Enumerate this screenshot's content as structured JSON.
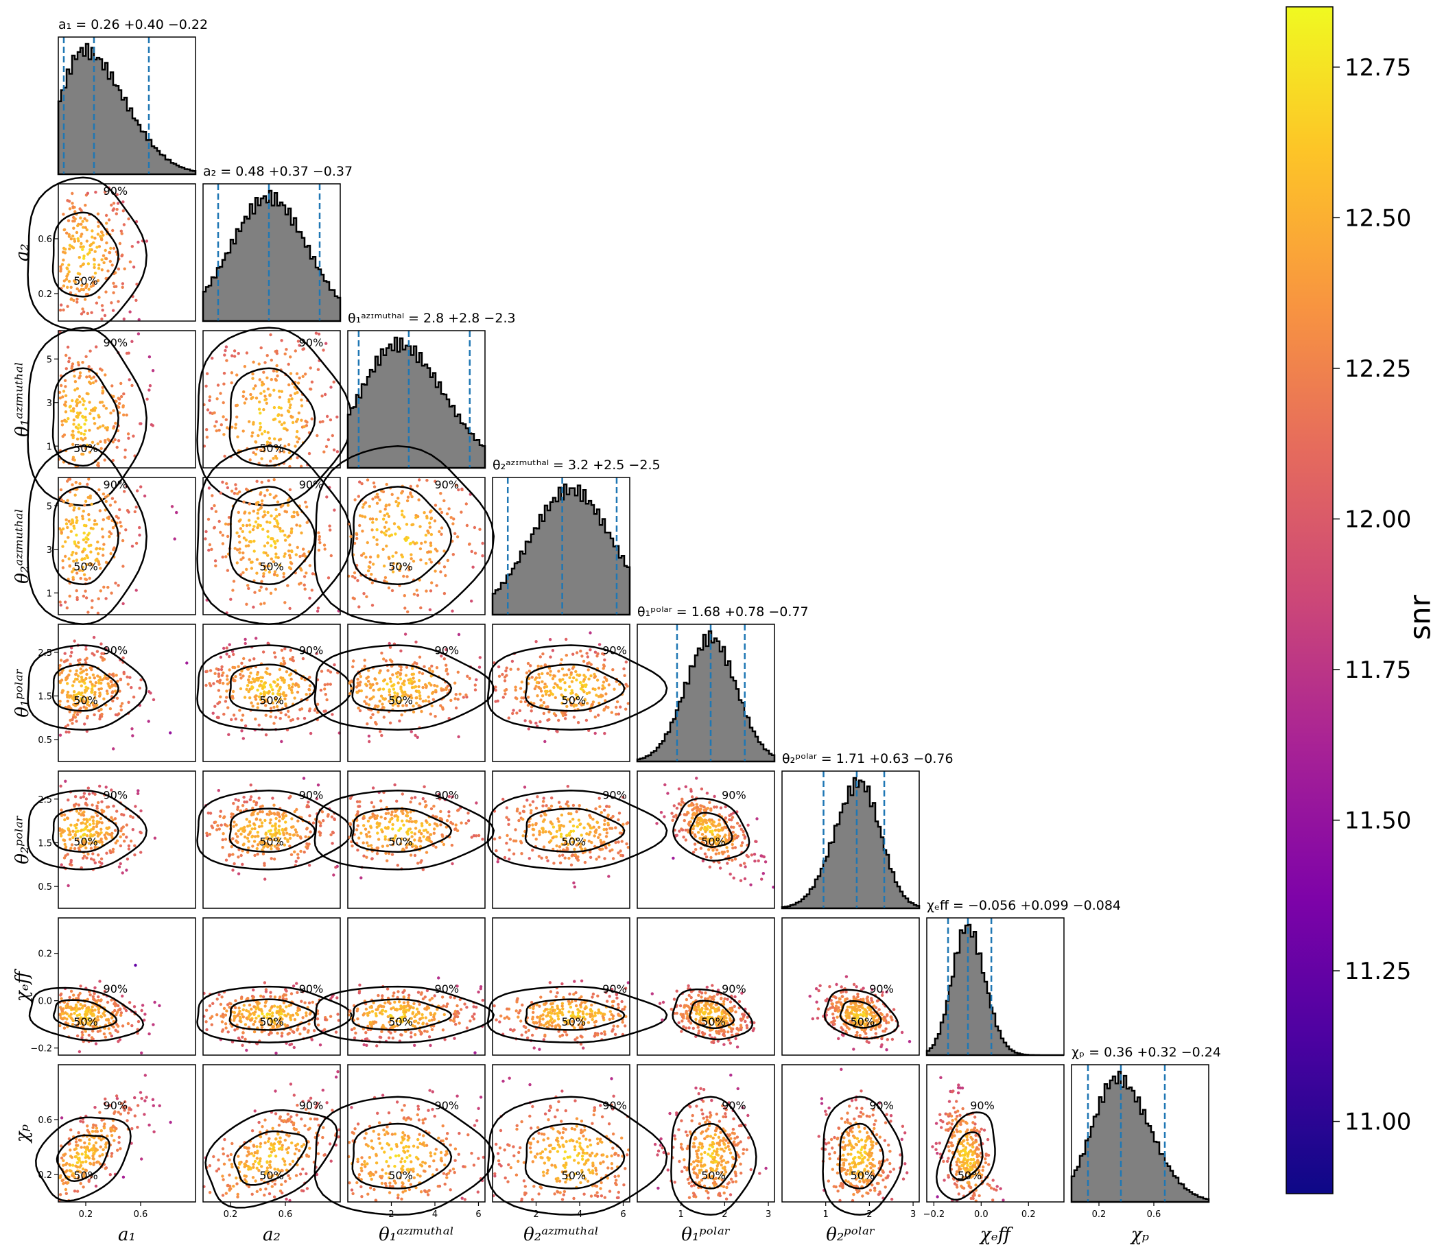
{
  "chart_data": {
    "type": "corner",
    "colormap": "plasma",
    "point_color_range": [
      11.9,
      12.8
    ],
    "contour_levels": [
      "50%",
      "90%"
    ],
    "histogram_fill": "#808080",
    "quantile_line_color": "#1f77b4",
    "parameters": [
      {
        "key": "a1",
        "title": "a₁ = 0.26 +0.40 −0.22",
        "label": "a₁",
        "median": 0.26,
        "lower": 0.04,
        "upper": 0.66,
        "range": [
          0.0,
          1.0
        ],
        "ticks": [
          "0.2",
          "0.6"
        ],
        "tick_values": [
          0.2,
          0.6
        ],
        "mode": 0.18,
        "sd": 0.2
      },
      {
        "key": "a2",
        "title": "a₂ = 0.48 +0.37 −0.37",
        "label": "a₂",
        "median": 0.48,
        "lower": 0.11,
        "upper": 0.85,
        "range": [
          0.0,
          1.0
        ],
        "ticks": [
          "0.2",
          "0.6"
        ],
        "tick_values": [
          0.2,
          0.6
        ],
        "mode": 0.48,
        "sd": 0.26
      },
      {
        "key": "theta1_az",
        "title": "θ₁ᵃᶻᶦᵐᵘᵗʰᵃˡ = 2.8 +2.8 −2.3",
        "label": "θ₁ᵃᶻᶦᵐᵘᵗʰᵃˡ",
        "median": 2.8,
        "lower": 0.5,
        "upper": 5.6,
        "range": [
          0.0,
          6.3
        ],
        "ticks": [
          "1",
          "3",
          "5"
        ],
        "xticks": [
          "2",
          "4",
          "6"
        ],
        "xtick_values": [
          2,
          4,
          6
        ],
        "tick_values": [
          1,
          3,
          5
        ],
        "mode": 2.3,
        "sd": 1.9
      },
      {
        "key": "theta2_az",
        "title": "θ₂ᵃᶻᶦᵐᵘᵗʰᵃˡ = 3.2 +2.5 −2.5",
        "label": "θ₂ᵃᶻᶦᵐᵘᵗʰᵃˡ",
        "median": 3.2,
        "lower": 0.7,
        "upper": 5.7,
        "range": [
          0.0,
          6.3
        ],
        "ticks": [
          "1",
          "3",
          "5"
        ],
        "xticks": [
          "2",
          "4",
          "6"
        ],
        "xtick_values": [
          2,
          4,
          6
        ],
        "tick_values": [
          1,
          3,
          5
        ],
        "mode": 3.6,
        "sd": 1.9
      },
      {
        "key": "theta1_pol",
        "title": "θ₁ᵖᵒˡᵃʳ = 1.68 +0.78 −0.77",
        "label": "θ₁ᵖᵒˡᵃʳ",
        "median": 1.68,
        "lower": 0.91,
        "upper": 2.46,
        "range": [
          0.0,
          3.14
        ],
        "ticks": [
          "0.5",
          "1.5",
          "2.5"
        ],
        "xticks": [
          "1",
          "2",
          "3"
        ],
        "xtick_values": [
          1,
          2,
          3
        ],
        "tick_values": [
          0.5,
          1.5,
          2.5
        ],
        "mode": 1.68,
        "sd": 0.45
      },
      {
        "key": "theta2_pol",
        "title": "θ₂ᵖᵒˡᵃʳ = 1.71 +0.63 −0.76",
        "label": "θ₂ᵖᵒˡᵃʳ",
        "median": 1.71,
        "lower": 0.95,
        "upper": 2.34,
        "range": [
          0.0,
          3.14
        ],
        "ticks": [
          "0.5",
          "1.5",
          "2.5"
        ],
        "xticks": [
          "1",
          "2",
          "3"
        ],
        "xtick_values": [
          1,
          2,
          3
        ],
        "tick_values": [
          0.5,
          1.5,
          2.5
        ],
        "mode": 1.78,
        "sd": 0.42
      },
      {
        "key": "chi_eff",
        "title": "χₑff = −0.056 +0.099 −0.084",
        "label": "χₑff",
        "median": -0.056,
        "lower": -0.14,
        "upper": 0.043,
        "range": [
          -0.23,
          0.35
        ],
        "ticks": [
          "−0.2",
          "0.0",
          "0.2"
        ],
        "tick_values": [
          -0.2,
          0.0,
          0.2
        ],
        "mode": -0.06,
        "sd": 0.055
      },
      {
        "key": "chi_p",
        "title": "χₚ = 0.36 +0.32 −0.24",
        "label": "χₚ",
        "median": 0.36,
        "lower": 0.12,
        "upper": 0.68,
        "range": [
          0.0,
          1.0
        ],
        "ticks": [
          "0.2",
          "0.6"
        ],
        "tick_values": [
          0.2,
          0.6
        ],
        "mode": 0.33,
        "sd": 0.2
      }
    ],
    "colorbar": {
      "label": "snr",
      "ticks": [
        "11.00",
        "11.25",
        "11.50",
        "11.75",
        "12.00",
        "12.25",
        "12.50",
        "12.75"
      ],
      "tick_values": [
        11.0,
        11.25,
        11.5,
        11.75,
        12.0,
        12.25,
        12.5,
        12.75
      ],
      "range": [
        10.88,
        12.85
      ]
    }
  }
}
